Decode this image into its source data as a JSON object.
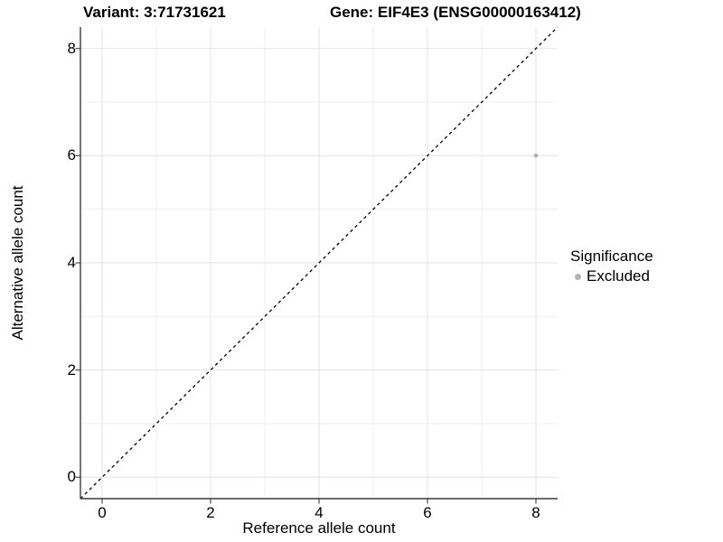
{
  "chart_data": {
    "type": "scatter",
    "title_left": "Variant: 3:71731621",
    "title_right": "Gene: EIF4E3 (ENSG00000163412)",
    "xlabel": "Reference allele count",
    "ylabel": "Alternative allele count",
    "xlim": [
      -0.4,
      8.4
    ],
    "ylim": [
      -0.4,
      8.4
    ],
    "xticks": [
      0,
      2,
      4,
      6,
      8
    ],
    "yticks": [
      0,
      2,
      4,
      6,
      8
    ],
    "minor_gridlines": [
      1,
      3,
      5,
      7
    ],
    "grid": "major+minor",
    "identity_line": {
      "type": "abline",
      "slope": 1,
      "intercept": 0,
      "style": "dashed",
      "color": "#000000"
    },
    "points": [
      {
        "x": 8,
        "y": 6,
        "significance": "Excluded",
        "color": "#b3b3b3"
      }
    ],
    "legend": {
      "title": "Significance",
      "position": "right",
      "items": [
        {
          "label": "Excluded",
          "color": "#b3b3b3"
        }
      ]
    },
    "colors": {
      "background": "#ffffff",
      "grid_major": "#e3e3e3",
      "grid_minor": "#efefef",
      "axis": "#3c3c3c",
      "text": "#000000",
      "point": "#b3b3b3"
    }
  }
}
